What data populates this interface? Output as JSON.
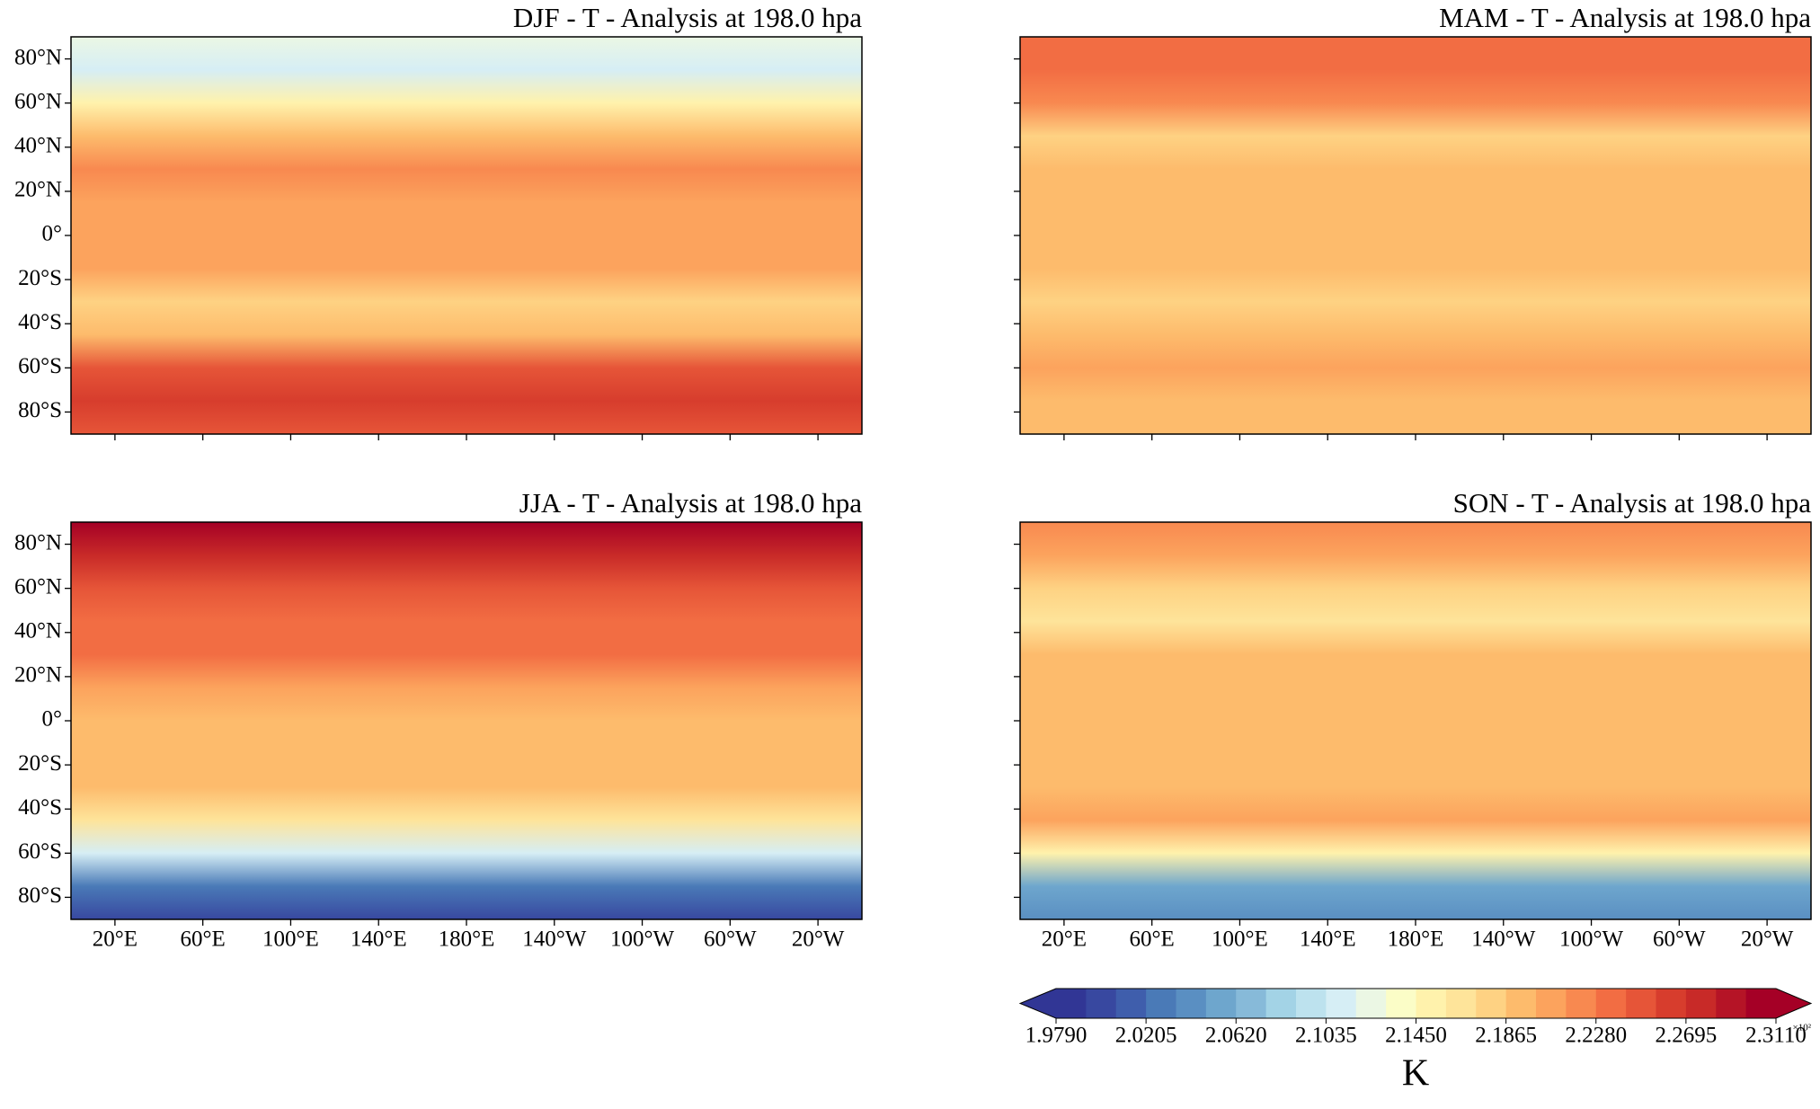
{
  "panels": [
    {
      "title": "DJF - T - Analysis at 198.0 hpa"
    },
    {
      "title": "MAM - T - Analysis at 198.0 hpa"
    },
    {
      "title": "JJA - T - Analysis at 198.0 hpa"
    },
    {
      "title": "SON - T - Analysis at 198.0 hpa"
    }
  ],
  "xlim": [
    0,
    360
  ],
  "ylim": [
    -90,
    90
  ],
  "lat_ticks": [
    {
      "value": 80,
      "label": "80°N"
    },
    {
      "value": 60,
      "label": "60°N"
    },
    {
      "value": 40,
      "label": "40°N"
    },
    {
      "value": 20,
      "label": "20°N"
    },
    {
      "value": 0,
      "label": "0°"
    },
    {
      "value": -20,
      "label": "20°S"
    },
    {
      "value": -40,
      "label": "40°S"
    },
    {
      "value": -60,
      "label": "60°S"
    },
    {
      "value": -80,
      "label": "80°S"
    }
  ],
  "lon_ticks": [
    {
      "value": 20,
      "label": "20°E"
    },
    {
      "value": 60,
      "label": "60°E"
    },
    {
      "value": 100,
      "label": "100°E"
    },
    {
      "value": 140,
      "label": "140°E"
    },
    {
      "value": 180,
      "label": "180°E"
    },
    {
      "value": 220,
      "label": "140°W"
    },
    {
      "value": 260,
      "label": "100°W"
    },
    {
      "value": 300,
      "label": "60°W"
    },
    {
      "value": 340,
      "label": "20°W"
    }
  ],
  "colorbar": {
    "label": "K",
    "multiplier": "×10²",
    "lim": [
      1.979,
      2.311
    ],
    "ticks": [
      {
        "value": 1.979,
        "label": "1.9790"
      },
      {
        "value": 2.0205,
        "label": "2.0205"
      },
      {
        "value": 2.062,
        "label": "2.0620"
      },
      {
        "value": 2.1035,
        "label": "2.1035"
      },
      {
        "value": 2.145,
        "label": "2.1450"
      },
      {
        "value": 2.1865,
        "label": "2.1865"
      },
      {
        "value": 2.228,
        "label": "2.2280"
      },
      {
        "value": 2.2695,
        "label": "2.2695"
      },
      {
        "value": 2.311,
        "label": "2.3110"
      }
    ],
    "colors": [
      "#313695",
      "#3848a0",
      "#3f5eac",
      "#4a7ab7",
      "#5a8fc2",
      "#6ea6cd",
      "#87bad9",
      "#a3d3e6",
      "#bde2ee",
      "#d6eef5",
      "#ebf7e4",
      "#fbfdc7",
      "#fff2ac",
      "#fee49a",
      "#fed283",
      "#fdbb6c",
      "#fca35d",
      "#f88950",
      "#f26d43",
      "#e65538",
      "#d73d2d",
      "#c82a28",
      "#b51426",
      "#a50026"
    ]
  }
}
